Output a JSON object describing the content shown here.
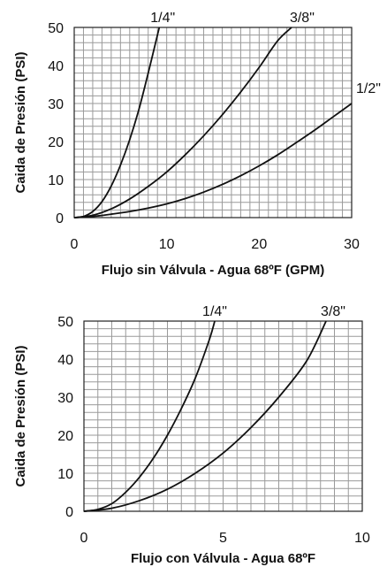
{
  "chart_data": [
    {
      "type": "line",
      "title": "",
      "xlabel": "Flujo sin Válvula - Agua 68ºF (GPM)",
      "ylabel": "Caida de Presión (PSI)",
      "xlim": [
        0,
        30
      ],
      "ylim": [
        0,
        50
      ],
      "x_ticks": [
        "0",
        "10",
        "20",
        "30"
      ],
      "y_ticks": [
        "0",
        "10",
        "20",
        "30",
        "40",
        "50"
      ],
      "grid": true,
      "series": [
        {
          "name": "1/4\"",
          "x": [
            0,
            1,
            2,
            3,
            4,
            5,
            6,
            7,
            8,
            9,
            9.2
          ],
          "y": [
            0,
            0.3,
            1.6,
            4.2,
            8.3,
            13.8,
            20.5,
            28.5,
            38,
            48,
            50
          ]
        },
        {
          "name": "3/8\"",
          "x": [
            0,
            2,
            4,
            6,
            8,
            10,
            12,
            14,
            16,
            18,
            20,
            22,
            23.5
          ],
          "y": [
            0,
            0.6,
            2.3,
            4.9,
            8.2,
            12,
            16.5,
            21.5,
            27,
            33,
            39.5,
            46.5,
            50
          ]
        },
        {
          "name": "1/2\"",
          "x": [
            0,
            2,
            4,
            6,
            8,
            10,
            12,
            14,
            16,
            18,
            20,
            22,
            24,
            26,
            28,
            30
          ],
          "y": [
            0,
            0.3,
            0.9,
            1.6,
            2.5,
            3.6,
            5,
            6.7,
            8.7,
            11,
            13.6,
            16.5,
            19.7,
            23,
            26.5,
            30
          ]
        }
      ]
    },
    {
      "type": "line",
      "title": "",
      "xlabel": "Flujo con Válvula - Agua 68ºF",
      "ylabel": "Caida de Presión (PSI)",
      "xlim": [
        0,
        10
      ],
      "ylim": [
        0,
        50
      ],
      "x_ticks": [
        "0",
        "5",
        "10"
      ],
      "y_ticks": [
        "0",
        "10",
        "20",
        "30",
        "40",
        "50"
      ],
      "grid": true,
      "series": [
        {
          "name": "1/4\"",
          "x": [
            0,
            0.5,
            1,
            1.5,
            2,
            2.5,
            3,
            3.5,
            4,
            4.5,
            4.7
          ],
          "y": [
            0,
            0.5,
            2,
            5,
            9,
            14,
            20,
            27,
            35,
            45,
            50
          ]
        },
        {
          "name": "3/8\"",
          "x": [
            0,
            1,
            2,
            3,
            4,
            5,
            6,
            7,
            8,
            8.7
          ],
          "y": [
            0,
            0.8,
            2.8,
            5.8,
            10,
            15.3,
            22,
            30,
            39.5,
            50
          ]
        }
      ]
    }
  ]
}
